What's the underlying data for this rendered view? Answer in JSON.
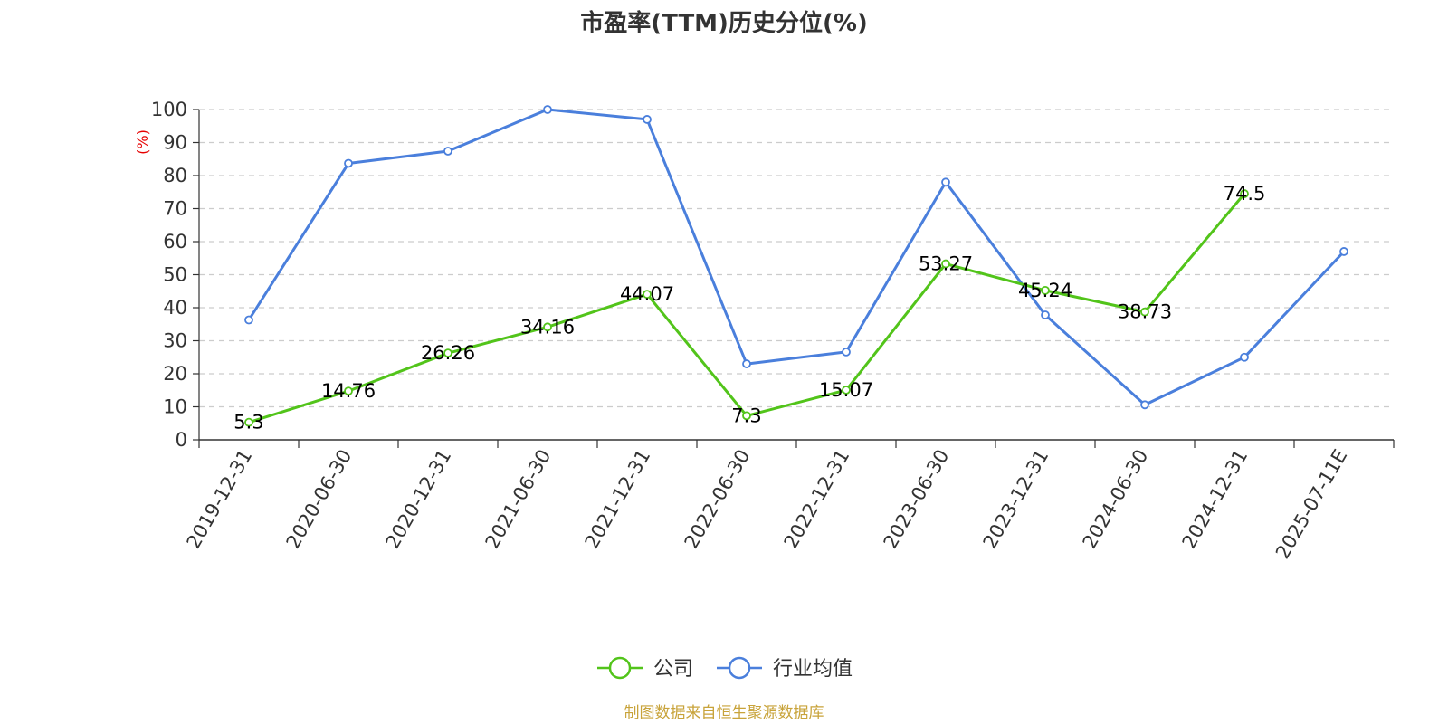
{
  "chart_data": {
    "type": "line",
    "title": "市盈率(TTM)历史分位(%)",
    "ylabel": "(%)",
    "ylim": [
      0,
      100
    ],
    "yticks": [
      0,
      10,
      20,
      30,
      40,
      50,
      60,
      70,
      80,
      90,
      100
    ],
    "grid": true,
    "legend_position": "bottom-center",
    "categories": [
      "2019-12-31",
      "2020-06-30",
      "2020-12-31",
      "2021-06-30",
      "2021-12-31",
      "2022-06-30",
      "2022-12-31",
      "2023-06-30",
      "2023-12-31",
      "2024-06-30",
      "2024-12-31",
      "2025-07-11E"
    ],
    "series": [
      {
        "name": "公司",
        "color": "#52c41a",
        "show_labels": true,
        "values": [
          5.3,
          14.76,
          26.26,
          34.16,
          44.07,
          7.3,
          15.07,
          53.27,
          45.24,
          38.73,
          74.5,
          null
        ]
      },
      {
        "name": "行业均值",
        "color": "#4a7fdc",
        "show_labels": false,
        "values": [
          36.3,
          83.7,
          87.4,
          100,
          97,
          23,
          26.6,
          78,
          37.8,
          10.6,
          25,
          57
        ]
      }
    ],
    "source": "制图数据来自恒生聚源数据库"
  }
}
